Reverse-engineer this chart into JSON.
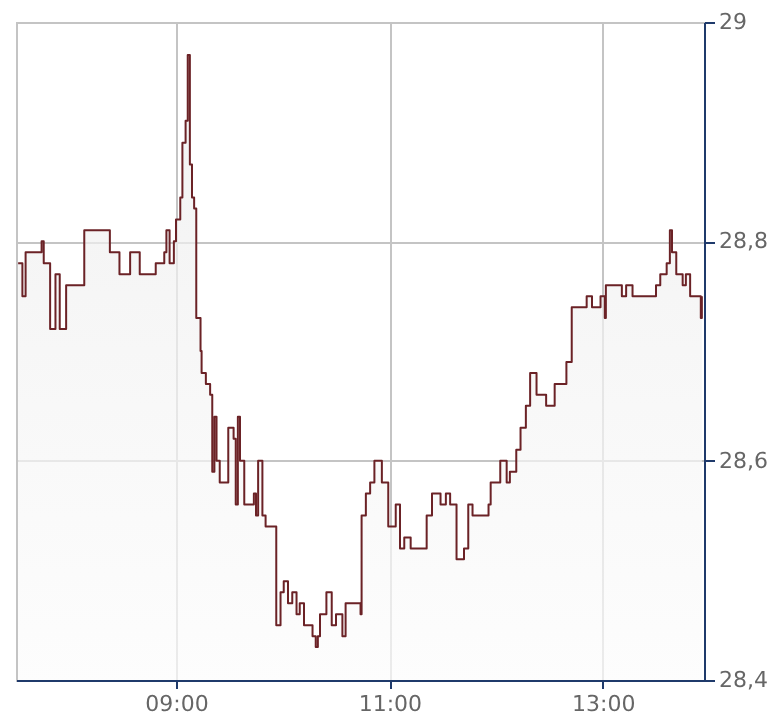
{
  "chart_data": {
    "type": "area",
    "xlim": [
      7.5,
      13.95
    ],
    "ylim": [
      28.4,
      29
    ],
    "xticks": [
      {
        "value": 9,
        "label": "09:00"
      },
      {
        "value": 11,
        "label": "11:00"
      },
      {
        "value": 13,
        "label": "13:00"
      }
    ],
    "yticks": [
      {
        "value": 28.4,
        "label": "28,4"
      },
      {
        "value": 28.6,
        "label": "28,6"
      },
      {
        "value": 28.8,
        "label": "28,8"
      },
      29
    ],
    "grid": true,
    "marker": "none",
    "line_style": "solid",
    "x": [
      7.52,
      7.56,
      7.56,
      7.59,
      7.59,
      7.72,
      7.72,
      7.74,
      7.74,
      7.76,
      7.76,
      7.82,
      7.82,
      7.87,
      7.87,
      7.91,
      7.91,
      7.97,
      7.97,
      8.06,
      8.06,
      8.14,
      8.14,
      8.38,
      8.38,
      8.47,
      8.47,
      8.57,
      8.57,
      8.66,
      8.66,
      8.81,
      8.81,
      8.89,
      8.89,
      8.91,
      8.91,
      8.94,
      8.94,
      8.98,
      8.98,
      9.0,
      9.0,
      9.04,
      9.04,
      9.06,
      9.06,
      9.09,
      9.09,
      9.11,
      9.11,
      9.13,
      9.13,
      9.15,
      9.15,
      9.17,
      9.17,
      9.19,
      9.19,
      9.23,
      9.23,
      9.24,
      9.24,
      9.28,
      9.28,
      9.32,
      9.32,
      9.34,
      9.34,
      9.36,
      9.36,
      9.38,
      9.38,
      9.41,
      9.41,
      9.45,
      9.45,
      9.49,
      9.49,
      9.54,
      9.54,
      9.56,
      9.56,
      9.58,
      9.58,
      9.6,
      9.6,
      9.64,
      9.64,
      9.69,
      9.69,
      9.71,
      9.71,
      9.73,
      9.73,
      9.75,
      9.75,
      9.77,
      9.77,
      9.81,
      9.81,
      9.84,
      9.84,
      9.94,
      9.94,
      9.98,
      9.98,
      10.01,
      10.01,
      10.05,
      10.05,
      10.09,
      10.09,
      10.13,
      10.13,
      10.16,
      10.16,
      10.2,
      10.2,
      10.24,
      10.24,
      10.28,
      10.28,
      10.31,
      10.31,
      10.33,
      10.33,
      10.35,
      10.35,
      10.41,
      10.41,
      10.46,
      10.46,
      10.5,
      10.5,
      10.56,
      10.56,
      10.59,
      10.59,
      10.67,
      10.67,
      10.73,
      10.73,
      10.74,
      10.74,
      10.78,
      10.78,
      10.82,
      10.82,
      10.86,
      10.86,
      10.89,
      10.89,
      10.93,
      10.93,
      10.99,
      10.99,
      11.03,
      11.03,
      11.06,
      11.06,
      11.1,
      11.1,
      11.14,
      11.14,
      11.2,
      11.2,
      11.29,
      11.29,
      11.35,
      11.35,
      11.4,
      11.4,
      11.48,
      11.48,
      11.53,
      11.53,
      11.57,
      11.57,
      11.63,
      11.63,
      11.7,
      11.7,
      11.74,
      11.74,
      11.78,
      11.78,
      11.85,
      11.85,
      11.93,
      11.93,
      11.95,
      11.95,
      12.0,
      12.0,
      12.04,
      12.04,
      12.08,
      12.08,
      12.1,
      12.1,
      12.13,
      12.13,
      12.19,
      12.19,
      12.23,
      12.23,
      12.28,
      12.28,
      12.32,
      12.32,
      12.38,
      12.38,
      12.43,
      12.43,
      12.47,
      12.47,
      12.51,
      12.51,
      12.55,
      12.55,
      12.6,
      12.6,
      12.66,
      12.66,
      12.71,
      12.71,
      12.79,
      12.79,
      12.85,
      12.85,
      12.9,
      12.9,
      12.98,
      12.98,
      13.02,
      13.02,
      13.03,
      13.03,
      13.09,
      13.09,
      13.13,
      13.13,
      13.18,
      13.18,
      13.22,
      13.22,
      13.28,
      13.28,
      13.33,
      13.33,
      13.39,
      13.39,
      13.5,
      13.5,
      13.54,
      13.54,
      13.6,
      13.6,
      13.63,
      13.63,
      13.65,
      13.65,
      13.69,
      13.69,
      13.75,
      13.75,
      13.78,
      13.78,
      13.82,
      13.82,
      13.88,
      13.88,
      13.92,
      13.92,
      13.93,
      13.93
    ],
    "series": [
      {
        "color": "#6b2226",
        "values": [
          28.78,
          28.78,
          28.75,
          28.75,
          28.79,
          28.79,
          28.79,
          28.79,
          28.8,
          28.8,
          28.78,
          28.78,
          28.72,
          28.72,
          28.77,
          28.77,
          28.72,
          28.72,
          28.76,
          28.76,
          28.76,
          28.76,
          28.81,
          28.81,
          28.79,
          28.79,
          28.77,
          28.77,
          28.79,
          28.79,
          28.77,
          28.77,
          28.78,
          28.78,
          28.79,
          28.79,
          28.81,
          28.81,
          28.78,
          28.78,
          28.8,
          28.8,
          28.82,
          28.82,
          28.84,
          28.84,
          28.89,
          28.89,
          28.91,
          28.91,
          28.97,
          28.97,
          28.87,
          28.87,
          28.84,
          28.84,
          28.83,
          28.83,
          28.73,
          28.73,
          28.7,
          28.7,
          28.68,
          28.68,
          28.67,
          28.67,
          28.66,
          28.66,
          28.59,
          28.59,
          28.64,
          28.64,
          28.6,
          28.6,
          28.58,
          28.58,
          28.58,
          28.58,
          28.63,
          28.63,
          28.62,
          28.62,
          28.56,
          28.56,
          28.64,
          28.64,
          28.6,
          28.6,
          28.56,
          28.56,
          28.56,
          28.56,
          28.56,
          28.56,
          28.57,
          28.57,
          28.55,
          28.55,
          28.6,
          28.6,
          28.55,
          28.55,
          28.54,
          28.54,
          28.45,
          28.45,
          28.48,
          28.48,
          28.49,
          28.49,
          28.47,
          28.47,
          28.48,
          28.48,
          28.46,
          28.46,
          28.47,
          28.47,
          28.45,
          28.45,
          28.45,
          28.45,
          28.44,
          28.44,
          28.43,
          28.43,
          28.44,
          28.44,
          28.46,
          28.46,
          28.48,
          28.48,
          28.45,
          28.45,
          28.46,
          28.46,
          28.44,
          28.44,
          28.47,
          28.47,
          28.47,
          28.47,
          28.46,
          28.46,
          28.55,
          28.55,
          28.57,
          28.57,
          28.58,
          28.58,
          28.6,
          28.6,
          28.6,
          28.6,
          28.58,
          28.58,
          28.54,
          28.54,
          28.54,
          28.54,
          28.56,
          28.56,
          28.52,
          28.52,
          28.53,
          28.53,
          28.52,
          28.52,
          28.52,
          28.52,
          28.55,
          28.55,
          28.57,
          28.57,
          28.56,
          28.56,
          28.57,
          28.57,
          28.56,
          28.56,
          28.51,
          28.51,
          28.52,
          28.52,
          28.56,
          28.56,
          28.55,
          28.55,
          28.55,
          28.55,
          28.56,
          28.56,
          28.58,
          28.58,
          28.58,
          28.58,
          28.6,
          28.6,
          28.6,
          28.6,
          28.58,
          28.58,
          28.59,
          28.59,
          28.61,
          28.61,
          28.63,
          28.63,
          28.65,
          28.65,
          28.68,
          28.68,
          28.66,
          28.66,
          28.66,
          28.66,
          28.65,
          28.65,
          28.65,
          28.65,
          28.67,
          28.67,
          28.67,
          28.67,
          28.69,
          28.69,
          28.74,
          28.74,
          28.74,
          28.74,
          28.75,
          28.75,
          28.74,
          28.74,
          28.75,
          28.75,
          28.73,
          28.73,
          28.76,
          28.76,
          28.76,
          28.76,
          28.76,
          28.76,
          28.75,
          28.75,
          28.76,
          28.76,
          28.75,
          28.75,
          28.75,
          28.75,
          28.75,
          28.75,
          28.76,
          28.76,
          28.77,
          28.77,
          28.78,
          28.78,
          28.81,
          28.81,
          28.79,
          28.79,
          28.77,
          28.77,
          28.76,
          28.76,
          28.77,
          28.77,
          28.75,
          28.75,
          28.75,
          28.75,
          28.73,
          28.73,
          28.75
        ]
      }
    ]
  }
}
